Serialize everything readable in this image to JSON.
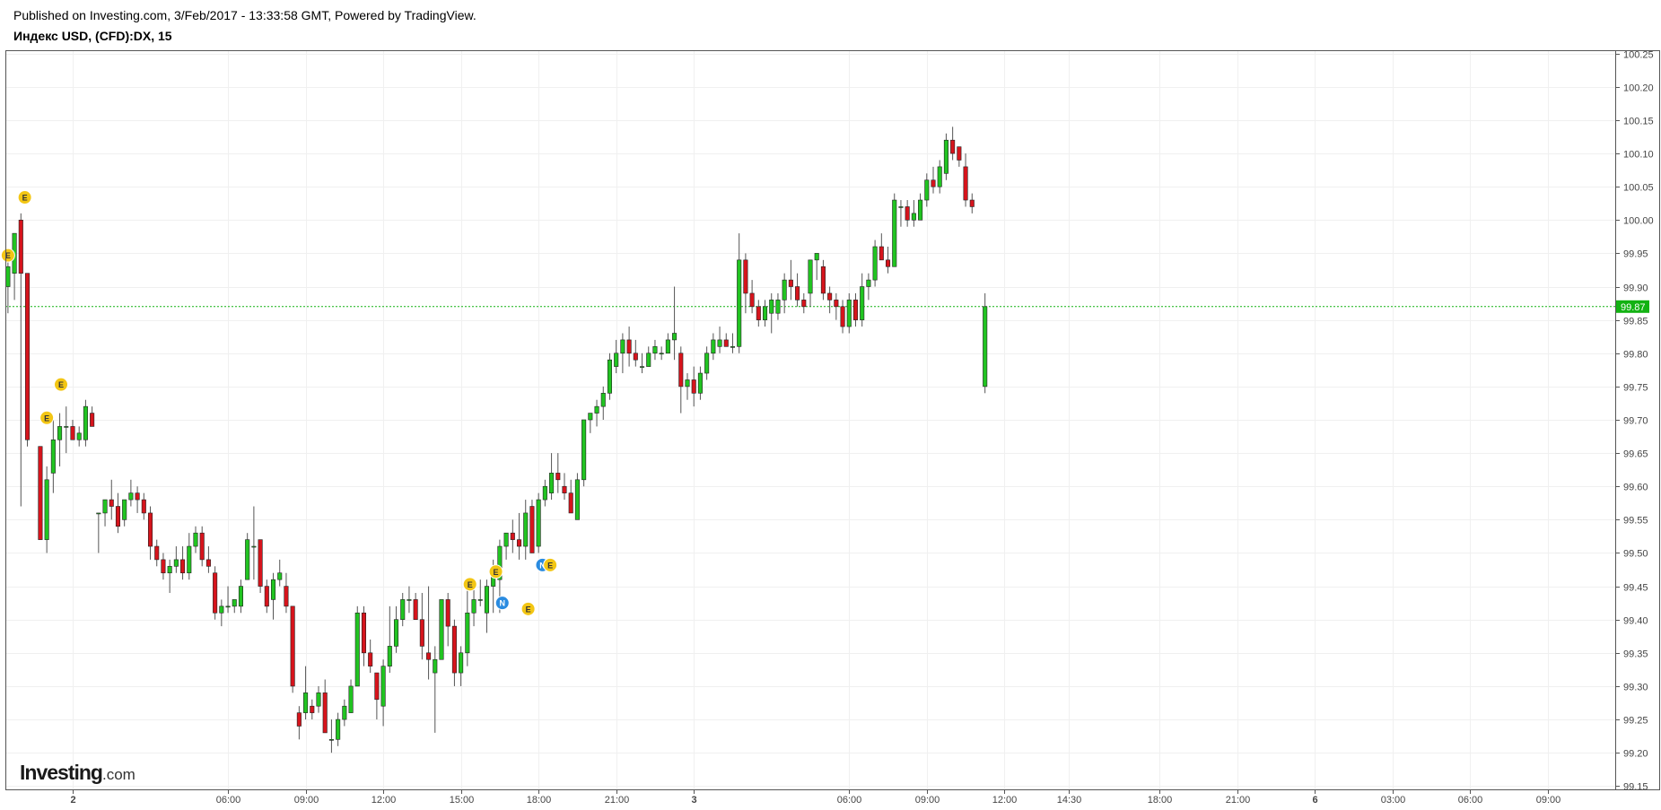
{
  "header": {
    "published": "Published on Investing.com, 3/Feb/2017 - 13:33:58 GMT, Powered by TradingView.",
    "symbol": "Индекс USD, (CFD):DX, 15"
  },
  "logo": {
    "brand": "Investing",
    "tld": ".com"
  },
  "colors": {
    "up": "#21c421",
    "down": "#d6141c",
    "wick": "#555555",
    "grid": "#f0f0f0",
    "axis": "#555555",
    "event_e": "#f3c614",
    "event_n": "#2a8be0",
    "price_line": "#13b213"
  },
  "chart_data": {
    "type": "candlestick",
    "timeframe": "15",
    "ylim": [
      99.145,
      100.255
    ],
    "y_ticks": [
      "99.15",
      "99.20",
      "99.25",
      "99.30",
      "99.35",
      "99.40",
      "99.45",
      "99.50",
      "99.55",
      "99.60",
      "99.65",
      "99.70",
      "99.75",
      "99.80",
      "99.85",
      "99.90",
      "99.95",
      "100.00",
      "100.05",
      "100.10",
      "100.15",
      "100.20",
      "100.25"
    ],
    "x_ticks": [
      {
        "label": "2",
        "t": 0,
        "bold": true
      },
      {
        "label": "06:00",
        "t": 6
      },
      {
        "label": "09:00",
        "t": 9
      },
      {
        "label": "12:00",
        "t": 12
      },
      {
        "label": "15:00",
        "t": 15
      },
      {
        "label": "18:00",
        "t": 18
      },
      {
        "label": "21:00",
        "t": 21
      },
      {
        "label": "3",
        "t": 24,
        "bold": true
      },
      {
        "label": "06:00",
        "t": 30
      },
      {
        "label": "09:00",
        "t": 33
      },
      {
        "label": "12:00",
        "t": 36
      },
      {
        "label": "14:30",
        "t": 38.5
      },
      {
        "label": "18:00",
        "t": 42
      },
      {
        "label": "21:00",
        "t": 45
      },
      {
        "label": "6",
        "t": 48,
        "bold": true
      },
      {
        "label": "03:00",
        "t": 51
      },
      {
        "label": "06:00",
        "t": 54
      },
      {
        "label": "09:00",
        "t": 57
      }
    ],
    "x_range_hours": [
      -2.6,
      59.6
    ],
    "bar_hours": 0.25,
    "first_bar_hour": -2.5,
    "last_price": "99.87",
    "last_price_value": 99.87,
    "candles": [
      [
        99.9,
        99.94,
        99.86,
        99.93
      ],
      [
        99.92,
        99.98,
        99.88,
        99.98
      ],
      [
        100.0,
        100.01,
        99.57,
        99.92
      ],
      [
        99.92,
        99.92,
        99.66,
        99.67
      ],
      [
        null,
        null,
        null,
        null
      ],
      [
        99.66,
        99.66,
        99.52,
        99.52
      ],
      [
        99.52,
        99.63,
        99.5,
        99.61
      ],
      [
        99.62,
        99.7,
        99.59,
        99.67
      ],
      [
        99.67,
        99.71,
        99.63,
        99.69
      ],
      [
        99.69,
        99.72,
        99.65,
        99.69
      ],
      [
        99.69,
        99.7,
        99.67,
        99.67
      ],
      [
        99.67,
        99.69,
        99.66,
        99.68
      ],
      [
        99.67,
        99.73,
        99.66,
        99.72
      ],
      [
        99.71,
        99.72,
        99.69,
        99.69
      ],
      [
        99.56,
        99.56,
        99.5,
        99.56
      ],
      [
        99.56,
        99.58,
        99.54,
        99.58
      ],
      [
        99.58,
        99.61,
        99.55,
        99.57
      ],
      [
        99.57,
        99.59,
        99.53,
        99.54
      ],
      [
        99.55,
        99.58,
        99.54,
        99.58
      ],
      [
        99.58,
        99.61,
        99.57,
        99.59
      ],
      [
        99.59,
        99.6,
        99.56,
        99.58
      ],
      [
        99.58,
        99.59,
        99.55,
        99.56
      ],
      [
        99.56,
        99.57,
        99.49,
        99.51
      ],
      [
        99.51,
        99.52,
        99.48,
        99.49
      ],
      [
        99.49,
        99.5,
        99.46,
        99.47
      ],
      [
        99.47,
        99.49,
        99.44,
        99.48
      ],
      [
        99.48,
        99.51,
        99.47,
        99.49
      ],
      [
        99.49,
        99.51,
        99.46,
        99.47
      ],
      [
        99.47,
        99.53,
        99.46,
        99.51
      ],
      [
        99.51,
        99.54,
        99.5,
        99.53
      ],
      [
        99.53,
        99.54,
        99.48,
        99.49
      ],
      [
        99.49,
        99.51,
        99.47,
        99.48
      ],
      [
        99.47,
        99.48,
        99.4,
        99.41
      ],
      [
        99.41,
        99.43,
        99.39,
        99.42
      ],
      [
        99.42,
        99.45,
        99.41,
        99.42
      ],
      [
        99.42,
        99.43,
        99.41,
        99.43
      ],
      [
        99.42,
        99.46,
        99.41,
        99.45
      ],
      [
        99.46,
        99.53,
        99.46,
        99.52
      ],
      [
        99.51,
        99.57,
        99.46,
        99.51
      ],
      [
        99.52,
        99.52,
        99.44,
        99.45
      ],
      [
        99.45,
        99.46,
        99.41,
        99.42
      ],
      [
        99.43,
        99.47,
        99.4,
        99.46
      ],
      [
        99.46,
        99.49,
        99.45,
        99.47
      ],
      [
        99.45,
        99.47,
        99.41,
        99.42
      ],
      [
        99.42,
        99.42,
        99.29,
        99.3
      ],
      [
        99.26,
        99.27,
        99.22,
        99.24
      ],
      [
        99.26,
        99.33,
        99.25,
        99.29
      ],
      [
        99.27,
        99.28,
        99.25,
        99.26
      ],
      [
        99.27,
        99.3,
        99.26,
        99.29
      ],
      [
        99.29,
        99.31,
        99.23,
        99.23
      ],
      [
        99.22,
        99.25,
        99.2,
        99.22
      ],
      [
        99.22,
        99.26,
        99.21,
        99.25
      ],
      [
        99.25,
        99.28,
        99.24,
        99.27
      ],
      [
        99.26,
        99.31,
        99.26,
        99.3
      ],
      [
        99.3,
        99.42,
        99.3,
        99.41
      ],
      [
        99.41,
        99.42,
        99.33,
        99.35
      ],
      [
        99.35,
        99.37,
        99.32,
        99.33
      ],
      [
        99.32,
        99.32,
        99.25,
        99.28
      ],
      [
        99.27,
        99.34,
        99.24,
        99.33
      ],
      [
        99.33,
        99.42,
        99.32,
        99.36
      ],
      [
        99.36,
        99.42,
        99.35,
        99.4
      ],
      [
        99.4,
        99.44,
        99.39,
        99.43
      ],
      [
        99.43,
        99.45,
        99.41,
        99.43
      ],
      [
        99.43,
        99.44,
        99.4,
        99.4
      ],
      [
        99.4,
        99.44,
        99.34,
        99.36
      ],
      [
        99.35,
        99.45,
        99.31,
        99.34
      ],
      [
        99.32,
        99.36,
        99.23,
        99.34
      ],
      [
        99.34,
        99.43,
        99.34,
        99.43
      ],
      [
        99.43,
        99.44,
        99.36,
        99.39
      ],
      [
        99.39,
        99.4,
        99.3,
        99.32
      ],
      [
        99.32,
        99.36,
        99.3,
        99.35
      ],
      [
        99.35,
        99.45,
        99.33,
        99.41
      ],
      [
        99.41,
        99.46,
        99.39,
        99.43
      ],
      [
        99.43,
        99.46,
        99.42,
        99.43
      ],
      [
        99.41,
        99.46,
        99.38,
        99.45
      ],
      [
        99.45,
        99.49,
        99.41,
        99.47
      ],
      [
        99.46,
        99.52,
        99.41,
        99.51
      ],
      [
        99.51,
        99.53,
        99.49,
        99.53
      ],
      [
        99.53,
        99.55,
        99.5,
        99.52
      ],
      [
        99.52,
        99.56,
        99.49,
        99.51
      ],
      [
        99.51,
        99.58,
        99.49,
        99.56
      ],
      [
        99.57,
        99.58,
        99.5,
        99.5
      ],
      [
        99.51,
        99.59,
        99.5,
        99.58
      ],
      [
        99.58,
        99.61,
        99.57,
        99.6
      ],
      [
        99.59,
        99.65,
        99.58,
        99.62
      ],
      [
        99.62,
        99.65,
        99.59,
        99.61
      ],
      [
        99.6,
        99.62,
        99.58,
        99.59
      ],
      [
        99.59,
        99.61,
        99.56,
        99.56
      ],
      [
        99.55,
        99.62,
        99.55,
        99.61
      ],
      [
        99.61,
        99.7,
        99.6,
        99.7
      ],
      [
        99.7,
        99.71,
        99.68,
        99.71
      ],
      [
        99.71,
        99.73,
        99.69,
        99.72
      ],
      [
        99.72,
        99.75,
        99.7,
        99.74
      ],
      [
        99.74,
        99.8,
        99.73,
        99.79
      ],
      [
        99.78,
        99.82,
        99.77,
        99.8
      ],
      [
        99.8,
        99.83,
        99.77,
        99.82
      ],
      [
        99.82,
        99.84,
        99.78,
        99.8
      ],
      [
        99.8,
        99.82,
        99.78,
        99.79
      ],
      [
        99.78,
        99.8,
        99.77,
        99.78
      ],
      [
        99.78,
        99.81,
        99.78,
        99.8
      ],
      [
        99.8,
        99.82,
        99.79,
        99.81
      ],
      [
        99.8,
        99.81,
        99.79,
        99.8
      ],
      [
        99.8,
        99.83,
        99.8,
        99.82
      ],
      [
        99.82,
        99.9,
        99.79,
        99.83
      ],
      [
        99.8,
        99.81,
        99.71,
        99.75
      ],
      [
        99.75,
        99.77,
        99.73,
        99.76
      ],
      [
        99.76,
        99.78,
        99.72,
        99.74
      ],
      [
        99.74,
        99.78,
        99.73,
        99.77
      ],
      [
        99.77,
        99.81,
        99.76,
        99.8
      ],
      [
        99.8,
        99.83,
        99.79,
        99.82
      ],
      [
        99.81,
        99.84,
        99.8,
        99.82
      ],
      [
        99.82,
        99.83,
        99.81,
        99.81
      ],
      [
        99.81,
        99.83,
        99.8,
        99.81
      ],
      [
        99.81,
        99.98,
        99.8,
        99.94
      ],
      [
        99.94,
        99.95,
        99.86,
        99.89
      ],
      [
        99.89,
        99.91,
        99.86,
        99.87
      ],
      [
        99.87,
        99.88,
        99.84,
        99.85
      ],
      [
        99.85,
        99.88,
        99.84,
        99.87
      ],
      [
        99.86,
        99.89,
        99.83,
        99.88
      ],
      [
        99.86,
        99.89,
        99.85,
        99.88
      ],
      [
        99.88,
        99.92,
        99.86,
        99.91
      ],
      [
        99.91,
        99.94,
        99.88,
        99.9
      ],
      [
        99.9,
        99.92,
        99.87,
        99.88
      ],
      [
        99.88,
        99.89,
        99.86,
        99.87
      ],
      [
        99.89,
        99.94,
        99.87,
        99.94
      ],
      [
        99.94,
        99.95,
        99.91,
        99.95
      ],
      [
        99.93,
        99.94,
        99.88,
        99.89
      ],
      [
        99.89,
        99.9,
        99.86,
        99.88
      ],
      [
        99.88,
        99.89,
        99.85,
        99.87
      ],
      [
        99.87,
        99.88,
        99.83,
        99.84
      ],
      [
        99.84,
        99.89,
        99.83,
        99.88
      ],
      [
        99.88,
        99.89,
        99.84,
        99.85
      ],
      [
        99.85,
        99.92,
        99.84,
        99.9
      ],
      [
        99.9,
        99.92,
        99.88,
        99.91
      ],
      [
        99.91,
        99.97,
        99.9,
        99.96
      ],
      [
        99.96,
        99.98,
        99.94,
        99.94
      ],
      [
        99.94,
        99.96,
        99.92,
        99.93
      ],
      [
        99.93,
        100.04,
        99.93,
        100.03
      ],
      [
        100.02,
        100.03,
        99.99,
        100.02
      ],
      [
        100.02,
        100.03,
        99.99,
        100.0
      ],
      [
        100.0,
        100.03,
        99.99,
        100.01
      ],
      [
        100.0,
        100.04,
        100.0,
        100.03
      ],
      [
        100.03,
        100.07,
        100.02,
        100.06
      ],
      [
        100.06,
        100.08,
        100.04,
        100.05
      ],
      [
        100.05,
        100.09,
        100.04,
        100.08
      ],
      [
        100.07,
        100.13,
        100.06,
        100.12
      ],
      [
        100.12,
        100.14,
        100.09,
        100.1
      ],
      [
        100.11,
        100.11,
        100.08,
        100.09
      ],
      [
        100.08,
        100.1,
        100.02,
        100.03
      ],
      [
        100.03,
        100.04,
        100.01,
        100.02
      ],
      [
        null,
        null,
        null,
        null
      ],
      [
        99.75,
        99.89,
        99.74,
        99.87
      ]
    ]
  },
  "events": [
    {
      "label": "E",
      "color": "event_e",
      "t": -2.5,
      "price": 99.947
    },
    {
      "label": "E",
      "color": "event_e",
      "t": -1.85,
      "price": 100.034
    },
    {
      "label": "E",
      "color": "event_e",
      "t": -1.0,
      "price": 99.703
    },
    {
      "label": "E",
      "color": "event_e",
      "t": -0.45,
      "price": 99.753
    },
    {
      "label": "E",
      "color": "event_e",
      "t": 15.35,
      "price": 99.453
    },
    {
      "label": "E",
      "color": "event_e",
      "t": 16.35,
      "price": 99.472
    },
    {
      "label": "N",
      "color": "event_n",
      "t": 16.6,
      "price": 99.425
    },
    {
      "label": "E",
      "color": "event_e",
      "t": 17.6,
      "price": 99.416
    },
    {
      "label": "N",
      "color": "event_n",
      "t": 18.15,
      "price": 99.482
    },
    {
      "label": "E",
      "color": "event_e",
      "t": 18.45,
      "price": 99.482
    }
  ]
}
